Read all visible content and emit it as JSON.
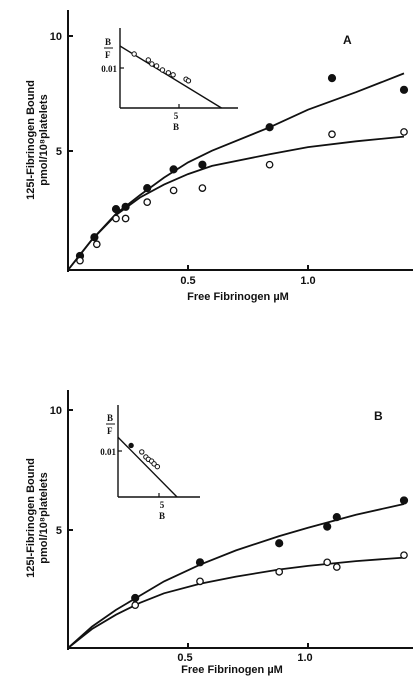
{
  "chart_data": [
    {
      "type": "scatter",
      "panel_label": "A",
      "ylabel_line1": "125I-Fibrinogen Bound",
      "ylabel_line2": "pmol/10⁸platelets",
      "xlabel": "Free Fibrinogen  µM",
      "xlim": [
        0,
        1.4
      ],
      "ylim": [
        0,
        10
      ],
      "x_ticks": [
        0.5,
        1.0
      ],
      "x_tick_labels": [
        "0.5",
        "1.0"
      ],
      "y_ticks": [
        5,
        10
      ],
      "y_tick_labels": [
        "5",
        "10"
      ],
      "series": [
        {
          "marker": "filled-circle",
          "x": [
            0.05,
            0.11,
            0.2,
            0.24,
            0.33,
            0.44,
            0.56,
            0.84,
            1.1,
            1.4
          ],
          "y": [
            0.6,
            1.4,
            2.6,
            2.7,
            3.5,
            4.3,
            4.5,
            6.1,
            8.2,
            7.7
          ],
          "fit": [
            [
              0,
              0
            ],
            [
              0.1,
              1.3
            ],
            [
              0.2,
              2.4
            ],
            [
              0.3,
              3.2
            ],
            [
              0.4,
              3.95
            ],
            [
              0.5,
              4.6
            ],
            [
              0.6,
              5.1
            ],
            [
              0.84,
              6.1
            ],
            [
              1.0,
              6.85
            ],
            [
              1.2,
              7.6
            ],
            [
              1.4,
              8.4
            ]
          ]
        },
        {
          "marker": "open-circle",
          "x": [
            0.05,
            0.12,
            0.2,
            0.24,
            0.33,
            0.44,
            0.56,
            0.84,
            1.1,
            1.4
          ],
          "y": [
            0.4,
            1.1,
            2.2,
            2.2,
            2.9,
            3.4,
            3.5,
            4.5,
            5.8,
            5.9
          ],
          "fit": [
            [
              0,
              0
            ],
            [
              0.1,
              1.3
            ],
            [
              0.2,
              2.35
            ],
            [
              0.3,
              3.1
            ],
            [
              0.4,
              3.65
            ],
            [
              0.5,
              4.1
            ],
            [
              0.6,
              4.45
            ],
            [
              0.84,
              4.95
            ],
            [
              1.0,
              5.25
            ],
            [
              1.2,
              5.5
            ],
            [
              1.4,
              5.7
            ]
          ]
        }
      ],
      "inset": {
        "ylabel_top": "B",
        "ylabel_bottom": "F",
        "y_tick_label": "0.01",
        "x_tick_label": "5",
        "xlabel": "B",
        "xlim": [
          0,
          10
        ],
        "ylim": [
          0,
          0.02
        ],
        "y_tick_value": 0.01,
        "x_tick_value": 5,
        "points_x": [
          1.2,
          2.4,
          2.7,
          3.1,
          3.6,
          4.1,
          4.5,
          5.6,
          5.8
        ],
        "points_y": [
          0.0135,
          0.012,
          0.011,
          0.0105,
          0.0095,
          0.0088,
          0.0083,
          0.0072,
          0.0068
        ],
        "line": [
          [
            0,
            0.0155
          ],
          [
            8.6,
            0
          ]
        ]
      }
    },
    {
      "type": "scatter",
      "panel_label": "B",
      "ylabel_line1": "125I-Fibrinogen Bound",
      "ylabel_line2": "pmol/10⁸platelets",
      "xlabel": "Free Fibrinogen  µM",
      "xlim": [
        0,
        1.4
      ],
      "ylim": [
        0,
        10
      ],
      "x_ticks": [
        0.5,
        1.0
      ],
      "x_tick_labels": [
        "0.5",
        "1.0"
      ],
      "y_ticks": [
        5,
        10
      ],
      "y_tick_labels": [
        "5",
        "10"
      ],
      "series": [
        {
          "marker": "filled-circle",
          "x": [
            0.28,
            0.55,
            0.88,
            1.08,
            1.12,
            1.4
          ],
          "y": [
            2.1,
            3.6,
            4.4,
            5.1,
            5.5,
            6.2
          ],
          "fit": [
            [
              0,
              0
            ],
            [
              0.1,
              0.9
            ],
            [
              0.2,
              1.6
            ],
            [
              0.3,
              2.2
            ],
            [
              0.4,
              2.8
            ],
            [
              0.55,
              3.5
            ],
            [
              0.7,
              4.1
            ],
            [
              0.88,
              4.7
            ],
            [
              1.0,
              5.05
            ],
            [
              1.2,
              5.6
            ],
            [
              1.4,
              6.05
            ]
          ]
        },
        {
          "marker": "open-circle",
          "x": [
            0.28,
            0.55,
            0.88,
            1.08,
            1.12,
            1.4
          ],
          "y": [
            1.8,
            2.8,
            3.2,
            3.6,
            3.4,
            3.9
          ],
          "fit": [
            [
              0,
              0
            ],
            [
              0.1,
              0.8
            ],
            [
              0.2,
              1.4
            ],
            [
              0.3,
              1.9
            ],
            [
              0.4,
              2.3
            ],
            [
              0.55,
              2.7
            ],
            [
              0.7,
              3.0
            ],
            [
              0.88,
              3.3
            ],
            [
              1.0,
              3.45
            ],
            [
              1.2,
              3.65
            ],
            [
              1.4,
              3.8
            ]
          ]
        }
      ],
      "inset": {
        "ylabel_top": "B",
        "ylabel_bottom": "F",
        "y_tick_label": "0.01",
        "x_tick_label": "5",
        "xlabel": "B",
        "xlim": [
          0,
          10
        ],
        "ylim": [
          0,
          0.02
        ],
        "y_tick_value": 0.01,
        "x_tick_value": 5,
        "points_x": [
          1.6,
          2.9,
          3.4,
          3.7,
          4.1,
          4.4,
          4.8
        ],
        "points_y": [
          0.0112,
          0.0098,
          0.0087,
          0.0082,
          0.0078,
          0.0072,
          0.0066
        ],
        "line": [
          [
            0,
            0.013
          ],
          [
            7.2,
            0
          ]
        ]
      }
    }
  ]
}
